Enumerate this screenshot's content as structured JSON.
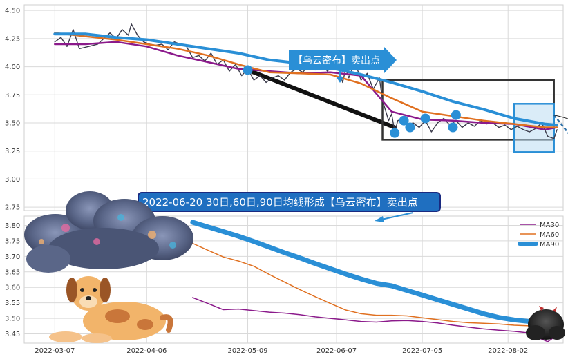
{
  "annotations": {
    "sell_flag": "【乌云密布】卖出点",
    "banner": "2022-06-20 30日,60日,90日均线形成【乌云密布】卖出点"
  },
  "colors": {
    "price": "#3a3a4a",
    "ma30": "#8b1a8b",
    "ma60": "#e07020",
    "ma90": "#2a8fd6",
    "banner_bg": "#1f6fc0",
    "flag_bg": "#2a8fd6",
    "grid": "#d9d9d9",
    "box": "#333333"
  },
  "chart_data": [
    {
      "type": "line",
      "panel": "price",
      "x_type": "date",
      "xlim": [
        "2022-02-25",
        "2022-08-20"
      ],
      "ylim": [
        2.72,
        4.55
      ],
      "y_ticks": [
        "2.75",
        "3.00",
        "3.25",
        "3.50",
        "3.75",
        "4.00",
        "4.25",
        "4.50"
      ],
      "x_ticks": [],
      "grid": true,
      "series": [
        {
          "key": "price",
          "points": [
            [
              "2022-03-07",
              4.22
            ],
            [
              "2022-03-09",
              4.26
            ],
            [
              "2022-03-11",
              4.18
            ],
            [
              "2022-03-13",
              4.33
            ],
            [
              "2022-03-15",
              4.16
            ],
            [
              "2022-03-18",
              4.18
            ],
            [
              "2022-03-21",
              4.2
            ],
            [
              "2022-03-23",
              4.25
            ],
            [
              "2022-03-25",
              4.3
            ],
            [
              "2022-03-27",
              4.25
            ],
            [
              "2022-03-29",
              4.33
            ],
            [
              "2022-03-31",
              4.28
            ],
            [
              "2022-04-01",
              4.38
            ],
            [
              "2022-04-03",
              4.28
            ],
            [
              "2022-04-05",
              4.22
            ],
            [
              "2022-04-07",
              4.2
            ],
            [
              "2022-04-09",
              4.19
            ],
            [
              "2022-04-11",
              4.2
            ],
            [
              "2022-04-13",
              4.15
            ],
            [
              "2022-04-15",
              4.22
            ],
            [
              "2022-04-17",
              4.2
            ],
            [
              "2022-04-19",
              4.18
            ],
            [
              "2022-04-21",
              4.08
            ],
            [
              "2022-04-23",
              4.1
            ],
            [
              "2022-04-25",
              4.05
            ],
            [
              "2022-04-27",
              4.12
            ],
            [
              "2022-04-29",
              4.02
            ],
            [
              "2022-05-01",
              4.06
            ],
            [
              "2022-05-03",
              3.96
            ],
            [
              "2022-05-05",
              4.02
            ],
            [
              "2022-05-07",
              3.92
            ],
            [
              "2022-05-09",
              3.98
            ],
            [
              "2022-05-11",
              3.88
            ],
            [
              "2022-05-13",
              3.92
            ],
            [
              "2022-05-15",
              3.86
            ],
            [
              "2022-05-17",
              3.9
            ],
            [
              "2022-05-19",
              3.92
            ],
            [
              "2022-05-21",
              3.88
            ],
            [
              "2022-05-23",
              3.95
            ],
            [
              "2022-05-25",
              3.98
            ],
            [
              "2022-05-27",
              3.95
            ],
            [
              "2022-05-29",
              4.02
            ],
            [
              "2022-05-31",
              3.97
            ],
            [
              "2022-06-02",
              4.03
            ],
            [
              "2022-06-04",
              3.96
            ],
            [
              "2022-06-06",
              4.02
            ],
            [
              "2022-06-08",
              3.96
            ],
            [
              "2022-06-09",
              3.86
            ],
            [
              "2022-06-10",
              3.98
            ],
            [
              "2022-06-11",
              3.9
            ],
            [
              "2022-06-13",
              4.04
            ],
            [
              "2022-06-14",
              3.96
            ],
            [
              "2022-06-15",
              3.88
            ],
            [
              "2022-06-17",
              3.94
            ],
            [
              "2022-06-19",
              3.8
            ],
            [
              "2022-06-21",
              3.9
            ],
            [
              "2022-06-22",
              3.7
            ],
            [
              "2022-06-24",
              3.52
            ],
            [
              "2022-06-25",
              3.58
            ],
            [
              "2022-06-26",
              3.42
            ],
            [
              "2022-06-27",
              3.52
            ],
            [
              "2022-06-29",
              3.54
            ],
            [
              "2022-06-30",
              3.48
            ],
            [
              "2022-07-02",
              3.5
            ],
            [
              "2022-07-04",
              3.46
            ],
            [
              "2022-07-06",
              3.52
            ],
            [
              "2022-07-08",
              3.42
            ],
            [
              "2022-07-10",
              3.5
            ],
            [
              "2022-07-12",
              3.54
            ],
            [
              "2022-07-14",
              3.48
            ],
            [
              "2022-07-16",
              3.52
            ],
            [
              "2022-07-18",
              3.46
            ],
            [
              "2022-07-20",
              3.5
            ],
            [
              "2022-07-22",
              3.47
            ],
            [
              "2022-07-24",
              3.52
            ],
            [
              "2022-07-26",
              3.49
            ],
            [
              "2022-07-28",
              3.5
            ],
            [
              "2022-07-30",
              3.46
            ],
            [
              "2022-08-01",
              3.48
            ],
            [
              "2022-08-03",
              3.44
            ],
            [
              "2022-08-05",
              3.47
            ],
            [
              "2022-08-07",
              3.44
            ],
            [
              "2022-08-09",
              3.42
            ],
            [
              "2022-08-11",
              3.45
            ],
            [
              "2022-08-13",
              3.5
            ],
            [
              "2022-08-15",
              3.38
            ],
            [
              "2022-08-17",
              3.36
            ],
            [
              "2022-08-18",
              3.44
            ]
          ]
        },
        {
          "key": "ma30",
          "points": [
            [
              "2022-03-07",
              4.2
            ],
            [
              "2022-03-17",
              4.2
            ],
            [
              "2022-03-27",
              4.22
            ],
            [
              "2022-04-06",
              4.18
            ],
            [
              "2022-04-16",
              4.1
            ],
            [
              "2022-04-26",
              4.04
            ],
            [
              "2022-05-06",
              3.98
            ],
            [
              "2022-05-16",
              3.96
            ],
            [
              "2022-05-26",
              3.94
            ],
            [
              "2022-06-05",
              3.95
            ],
            [
              "2022-06-15",
              3.92
            ],
            [
              "2022-06-25",
              3.6
            ],
            [
              "2022-07-05",
              3.53
            ],
            [
              "2022-07-15",
              3.52
            ],
            [
              "2022-07-25",
              3.5
            ],
            [
              "2022-08-04",
              3.49
            ],
            [
              "2022-08-14",
              3.44
            ],
            [
              "2022-08-18",
              3.46
            ]
          ]
        },
        {
          "key": "ma60",
          "points": [
            [
              "2022-03-07",
              4.3
            ],
            [
              "2022-03-17",
              4.27
            ],
            [
              "2022-03-27",
              4.24
            ],
            [
              "2022-04-06",
              4.2
            ],
            [
              "2022-04-16",
              4.16
            ],
            [
              "2022-04-26",
              4.1
            ],
            [
              "2022-05-06",
              4.02
            ],
            [
              "2022-05-16",
              3.95
            ],
            [
              "2022-05-26",
              3.94
            ],
            [
              "2022-06-05",
              3.93
            ],
            [
              "2022-06-15",
              3.85
            ],
            [
              "2022-06-25",
              3.72
            ],
            [
              "2022-07-05",
              3.6
            ],
            [
              "2022-07-15",
              3.56
            ],
            [
              "2022-07-25",
              3.52
            ],
            [
              "2022-08-04",
              3.49
            ],
            [
              "2022-08-14",
              3.46
            ],
            [
              "2022-08-18",
              3.46
            ]
          ]
        },
        {
          "key": "ma90",
          "points": [
            [
              "2022-03-07",
              4.29
            ],
            [
              "2022-03-17",
              4.29
            ],
            [
              "2022-03-27",
              4.26
            ],
            [
              "2022-04-06",
              4.24
            ],
            [
              "2022-04-16",
              4.2
            ],
            [
              "2022-04-26",
              4.16
            ],
            [
              "2022-05-06",
              4.12
            ],
            [
              "2022-05-16",
              4.06
            ],
            [
              "2022-05-26",
              4.03
            ],
            [
              "2022-06-05",
              3.99
            ],
            [
              "2022-06-15",
              3.93
            ],
            [
              "2022-06-25",
              3.86
            ],
            [
              "2022-07-05",
              3.78
            ],
            [
              "2022-07-15",
              3.69
            ],
            [
              "2022-07-25",
              3.62
            ],
            [
              "2022-08-04",
              3.54
            ],
            [
              "2022-08-14",
              3.49
            ],
            [
              "2022-08-18",
              3.48
            ]
          ]
        }
      ],
      "markers": [
        [
          "2022-05-09",
          3.97
        ],
        [
          "2022-06-26",
          3.41
        ],
        [
          "2022-06-29",
          3.52
        ],
        [
          "2022-07-01",
          3.46
        ],
        [
          "2022-07-06",
          3.54
        ],
        [
          "2022-07-15",
          3.46
        ],
        [
          "2022-07-16",
          3.57
        ]
      ],
      "trend_line": [
        [
          "2022-05-09",
          3.97
        ],
        [
          "2022-06-26",
          3.46
        ]
      ],
      "highlight_box": {
        "x": [
          "2022-06-22",
          "2022-08-17"
        ],
        "y": [
          3.35,
          3.88
        ]
      },
      "signal_box": {
        "x": [
          "2022-08-04",
          "2022-08-17"
        ],
        "y": [
          3.24,
          3.67
        ]
      },
      "forecast_line": [
        [
          "2022-08-17",
          3.57
        ],
        [
          "2022-09-05",
          2.92
        ]
      ]
    },
    {
      "type": "line",
      "panel": "ma",
      "x_type": "date",
      "xlim": [
        "2022-02-25",
        "2022-08-20"
      ],
      "ylim": [
        3.42,
        3.83
      ],
      "y_ticks": [
        "3.45",
        "3.50",
        "3.55",
        "3.60",
        "3.65",
        "3.70",
        "3.75",
        "3.80"
      ],
      "x_ticks": [
        "2022-03-07",
        "2022-04-06",
        "2022-05-09",
        "2022-06-07",
        "2022-07-05",
        "2022-08-02"
      ],
      "grid": true,
      "legend_position": "top-right",
      "series": [
        {
          "key": "ma30",
          "name": "MA30",
          "points": [
            [
              "2022-04-21",
              3.567
            ],
            [
              "2022-04-26",
              3.548
            ],
            [
              "2022-05-01",
              3.528
            ],
            [
              "2022-05-06",
              3.53
            ],
            [
              "2022-05-11",
              3.525
            ],
            [
              "2022-05-16",
              3.52
            ],
            [
              "2022-05-21",
              3.517
            ],
            [
              "2022-05-26",
              3.512
            ],
            [
              "2022-05-31",
              3.505
            ],
            [
              "2022-06-05",
              3.5
            ],
            [
              "2022-06-10",
              3.495
            ],
            [
              "2022-06-15",
              3.49
            ],
            [
              "2022-06-20",
              3.488
            ],
            [
              "2022-06-25",
              3.492
            ],
            [
              "2022-06-30",
              3.493
            ],
            [
              "2022-07-05",
              3.49
            ],
            [
              "2022-07-10",
              3.485
            ],
            [
              "2022-07-15",
              3.478
            ],
            [
              "2022-07-20",
              3.472
            ],
            [
              "2022-07-25",
              3.466
            ],
            [
              "2022-07-30",
              3.462
            ],
            [
              "2022-08-04",
              3.458
            ],
            [
              "2022-08-09",
              3.453
            ],
            [
              "2022-08-12",
              3.437
            ],
            [
              "2022-08-15",
              3.425
            ],
            [
              "2022-08-18",
              3.445
            ]
          ]
        },
        {
          "key": "ma60",
          "name": "MA60",
          "points": [
            [
              "2022-04-21",
              3.742
            ],
            [
              "2022-04-26",
              3.72
            ],
            [
              "2022-05-01",
              3.698
            ],
            [
              "2022-05-06",
              3.685
            ],
            [
              "2022-05-11",
              3.668
            ],
            [
              "2022-05-16",
              3.642
            ],
            [
              "2022-05-21",
              3.617
            ],
            [
              "2022-05-26",
              3.593
            ],
            [
              "2022-05-31",
              3.57
            ],
            [
              "2022-06-05",
              3.548
            ],
            [
              "2022-06-10",
              3.527
            ],
            [
              "2022-06-15",
              3.515
            ],
            [
              "2022-06-20",
              3.51
            ],
            [
              "2022-06-25",
              3.51
            ],
            [
              "2022-06-30",
              3.508
            ],
            [
              "2022-07-05",
              3.502
            ],
            [
              "2022-07-10",
              3.496
            ],
            [
              "2022-07-15",
              3.49
            ],
            [
              "2022-07-20",
              3.486
            ],
            [
              "2022-07-25",
              3.484
            ],
            [
              "2022-07-30",
              3.482
            ],
            [
              "2022-08-04",
              3.478
            ],
            [
              "2022-08-09",
              3.476
            ],
            [
              "2022-08-12",
              3.473
            ],
            [
              "2022-08-15",
              3.468
            ],
            [
              "2022-08-18",
              3.46
            ]
          ]
        },
        {
          "key": "ma90",
          "name": "MA90",
          "points": [
            [
              "2022-04-21",
              3.81
            ],
            [
              "2022-04-26",
              3.795
            ],
            [
              "2022-05-01",
              3.78
            ],
            [
              "2022-05-06",
              3.765
            ],
            [
              "2022-05-11",
              3.748
            ],
            [
              "2022-05-16",
              3.73
            ],
            [
              "2022-05-21",
              3.712
            ],
            [
              "2022-05-26",
              3.695
            ],
            [
              "2022-05-31",
              3.677
            ],
            [
              "2022-06-05",
              3.66
            ],
            [
              "2022-06-10",
              3.643
            ],
            [
              "2022-06-15",
              3.627
            ],
            [
              "2022-06-20",
              3.613
            ],
            [
              "2022-06-25",
              3.605
            ],
            [
              "2022-06-30",
              3.59
            ],
            [
              "2022-07-05",
              3.575
            ],
            [
              "2022-07-10",
              3.56
            ],
            [
              "2022-07-15",
              3.545
            ],
            [
              "2022-07-20",
              3.53
            ],
            [
              "2022-07-25",
              3.515
            ],
            [
              "2022-07-30",
              3.503
            ],
            [
              "2022-08-04",
              3.495
            ],
            [
              "2022-08-09",
              3.49
            ],
            [
              "2022-08-12",
              3.484
            ],
            [
              "2022-08-15",
              3.478
            ],
            [
              "2022-08-18",
              3.475
            ]
          ]
        }
      ]
    }
  ]
}
